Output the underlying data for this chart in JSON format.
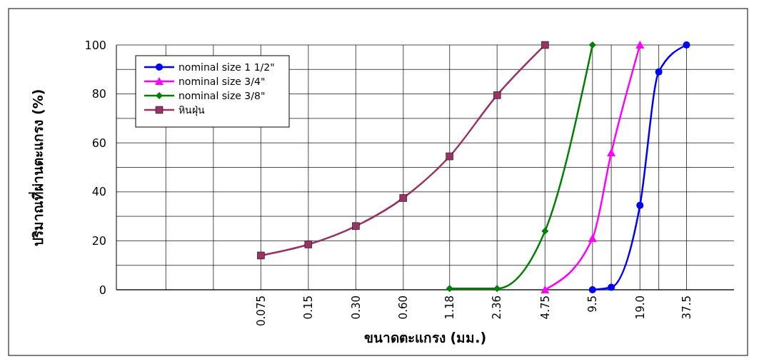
{
  "chart_data": {
    "type": "line",
    "xlabel": "ขนาดตะแกรง (มม.)",
    "ylabel": "ปริมาณที่ผ่านตะแกรง (%)",
    "log": "x",
    "xlim": [
      0.0091,
      75
    ],
    "xticks": [
      {
        "value": 0.01875,
        "label": null
      },
      {
        "value": 0.0375,
        "label": null
      },
      0.075,
      0.15,
      {
        "value": 0.3,
        "label": "0.30"
      },
      {
        "value": 0.6,
        "label": "0.60"
      },
      1.18,
      2.36,
      4.75,
      9.5,
      {
        "value": 19,
        "label": "19.0"
      },
      {
        "value": 12.5,
        "label": null
      },
      {
        "value": 25,
        "label": null
      },
      37.5
    ],
    "ylim": [
      0,
      100
    ],
    "yticks": [
      0,
      {
        "value": 10,
        "label": null
      },
      20,
      {
        "value": 30,
        "label": null
      },
      40,
      {
        "value": 50,
        "label": null
      },
      60,
      {
        "value": 70,
        "label": null
      },
      80,
      {
        "value": 90,
        "label": null
      },
      100
    ],
    "grid": true,
    "legend": "top left",
    "series": [
      {
        "name": "nominal size 1 1/2\"",
        "color": "#0000ff",
        "marker": "circle",
        "x": [
          9.5,
          12.5,
          19,
          25,
          37.5
        ],
        "values": [
          0,
          1,
          34.5,
          89,
          100
        ]
      },
      {
        "name": "nominal size 3/4\"",
        "color": "#ff00ff",
        "marker": "triangle",
        "x": [
          4.75,
          9.5,
          12.5,
          19
        ],
        "values": [
          0,
          21,
          56,
          100
        ]
      },
      {
        "name": "nominal size 3/8\"",
        "color": "#008000",
        "marker": "diamond",
        "x": [
          1.18,
          2.36,
          4.75,
          9.5
        ],
        "values": [
          0.5,
          0.5,
          24,
          100
        ]
      },
      {
        "name": "หินฝุ่น",
        "color": "#993366",
        "marker": "square",
        "x": [
          0.075,
          0.15,
          0.3,
          0.6,
          1.18,
          2.36,
          4.75
        ],
        "values": [
          14,
          18.5,
          26,
          37.5,
          54.5,
          79.5,
          100
        ]
      }
    ]
  }
}
